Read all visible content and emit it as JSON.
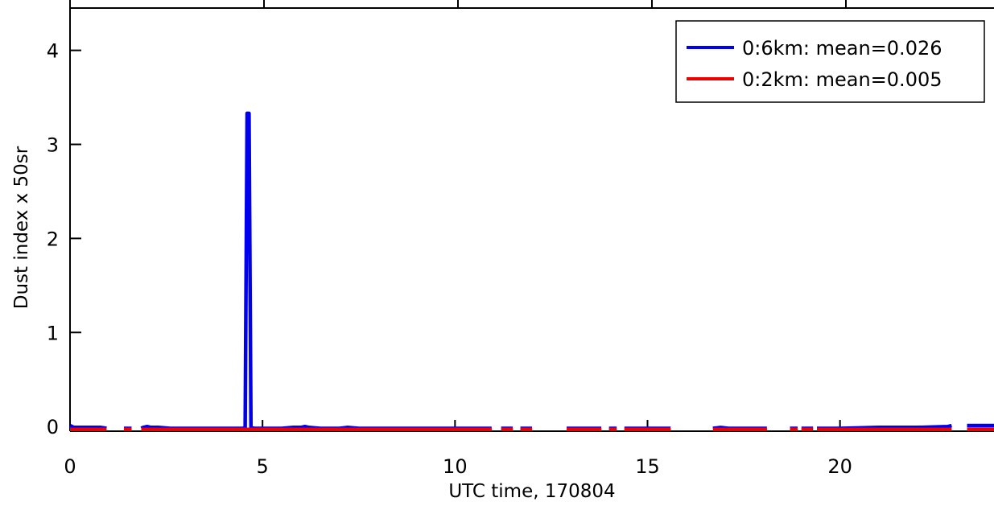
{
  "chart_data": {
    "type": "line",
    "xlabel": "UTC time, 170804",
    "ylabel": "Dust index x 50sr",
    "xlim": [
      0,
      24
    ],
    "ylim": [
      -0.05,
      4.45
    ],
    "xticks": [
      0,
      5,
      10,
      15,
      20
    ],
    "xtick_labels": [
      "0",
      "5",
      "10",
      "15",
      "20"
    ],
    "yticks": [
      0,
      1,
      2,
      3,
      4
    ],
    "ytick_labels": [
      "0",
      "1",
      "2",
      "3",
      "4"
    ],
    "grid": false,
    "legend_position": "top-right",
    "series": [
      {
        "name": "0:6km: mean=0.026",
        "color": "#0000ee",
        "segments": [
          [
            [
              0.0,
              0.01
            ],
            [
              0.1,
              -0.01
            ],
            [
              0.3,
              -0.01
            ],
            [
              0.5,
              -0.01
            ],
            [
              0.8,
              -0.01
            ],
            [
              0.95,
              -0.02
            ]
          ],
          [
            [
              1.4,
              -0.02
            ],
            [
              1.6,
              -0.02
            ]
          ],
          [
            [
              1.85,
              -0.02
            ],
            [
              1.9,
              -0.01
            ],
            [
              2.0,
              0.0
            ],
            [
              2.1,
              -0.01
            ],
            [
              2.3,
              -0.01
            ],
            [
              2.6,
              -0.02
            ],
            [
              3.0,
              -0.02
            ],
            [
              3.5,
              -0.02
            ],
            [
              4.0,
              -0.02
            ],
            [
              4.5,
              -0.02
            ],
            [
              4.55,
              -0.01
            ],
            [
              4.6,
              3.33
            ],
            [
              4.65,
              3.33
            ],
            [
              4.7,
              -0.01
            ],
            [
              4.8,
              -0.02
            ],
            [
              5.0,
              -0.02
            ],
            [
              5.5,
              -0.02
            ],
            [
              5.8,
              -0.01
            ],
            [
              6.0,
              -0.01
            ],
            [
              6.1,
              0.0
            ],
            [
              6.2,
              -0.01
            ],
            [
              6.5,
              -0.02
            ],
            [
              7.0,
              -0.02
            ],
            [
              7.2,
              -0.01
            ],
            [
              7.5,
              -0.02
            ],
            [
              8.0,
              -0.02
            ],
            [
              9.0,
              -0.02
            ],
            [
              10.0,
              -0.02
            ],
            [
              10.6,
              -0.02
            ],
            [
              10.95,
              -0.02
            ]
          ],
          [
            [
              11.2,
              -0.02
            ],
            [
              11.5,
              -0.02
            ]
          ],
          [
            [
              11.7,
              -0.02
            ],
            [
              12.0,
              -0.02
            ]
          ],
          [
            [
              12.9,
              -0.02
            ],
            [
              13.3,
              -0.02
            ],
            [
              13.5,
              -0.02
            ],
            [
              13.8,
              -0.02
            ]
          ],
          [
            [
              14.0,
              -0.02
            ],
            [
              14.2,
              -0.02
            ]
          ],
          [
            [
              14.4,
              -0.02
            ],
            [
              15.0,
              -0.02
            ],
            [
              15.6,
              -0.02
            ]
          ],
          [
            [
              16.7,
              -0.02
            ],
            [
              16.9,
              -0.01
            ],
            [
              17.1,
              -0.02
            ],
            [
              17.5,
              -0.02
            ],
            [
              17.8,
              -0.02
            ],
            [
              18.1,
              -0.02
            ]
          ],
          [
            [
              18.7,
              -0.02
            ],
            [
              18.9,
              -0.02
            ]
          ],
          [
            [
              19.0,
              -0.02
            ],
            [
              19.3,
              -0.02
            ]
          ],
          [
            [
              19.4,
              -0.02
            ],
            [
              20.0,
              -0.02
            ],
            [
              21.0,
              -0.01
            ],
            [
              22.0,
              -0.01
            ],
            [
              22.8,
              0.0
            ],
            [
              22.9,
              0.01
            ]
          ],
          [
            [
              23.3,
              0.01
            ],
            [
              23.8,
              0.01
            ],
            [
              24.0,
              0.01
            ]
          ]
        ]
      },
      {
        "name": "0:2km: mean=0.005",
        "color": "#ee0000",
        "segments": [
          [
            [
              0.0,
              -0.03
            ],
            [
              0.3,
              -0.03
            ],
            [
              0.7,
              -0.03
            ],
            [
              0.95,
              -0.03
            ]
          ],
          [
            [
              1.4,
              -0.03
            ],
            [
              1.6,
              -0.03
            ]
          ],
          [
            [
              1.85,
              -0.03
            ],
            [
              2.0,
              -0.03
            ],
            [
              3.0,
              -0.03
            ],
            [
              4.0,
              -0.03
            ],
            [
              4.6,
              -0.03
            ],
            [
              5.0,
              -0.03
            ],
            [
              6.0,
              -0.03
            ],
            [
              7.0,
              -0.03
            ],
            [
              8.0,
              -0.03
            ],
            [
              9.0,
              -0.03
            ],
            [
              10.0,
              -0.03
            ],
            [
              10.95,
              -0.03
            ]
          ],
          [
            [
              11.2,
              -0.03
            ],
            [
              11.5,
              -0.03
            ]
          ],
          [
            [
              11.7,
              -0.03
            ],
            [
              12.0,
              -0.03
            ]
          ],
          [
            [
              12.9,
              -0.03
            ],
            [
              13.3,
              -0.03
            ],
            [
              13.8,
              -0.03
            ]
          ],
          [
            [
              14.0,
              -0.03
            ],
            [
              14.2,
              -0.03
            ]
          ],
          [
            [
              14.4,
              -0.03
            ],
            [
              15.0,
              -0.03
            ],
            [
              15.6,
              -0.03
            ]
          ],
          [
            [
              16.7,
              -0.03
            ],
            [
              16.9,
              -0.03
            ],
            [
              17.5,
              -0.03
            ],
            [
              18.1,
              -0.03
            ]
          ],
          [
            [
              18.7,
              -0.03
            ],
            [
              18.9,
              -0.03
            ]
          ],
          [
            [
              19.0,
              -0.03
            ],
            [
              19.3,
              -0.03
            ]
          ],
          [
            [
              19.4,
              -0.03
            ],
            [
              20.0,
              -0.03
            ],
            [
              21.0,
              -0.03
            ],
            [
              22.0,
              -0.03
            ],
            [
              22.9,
              -0.03
            ]
          ],
          [
            [
              23.3,
              -0.03
            ],
            [
              24.0,
              -0.03
            ]
          ]
        ]
      }
    ]
  }
}
